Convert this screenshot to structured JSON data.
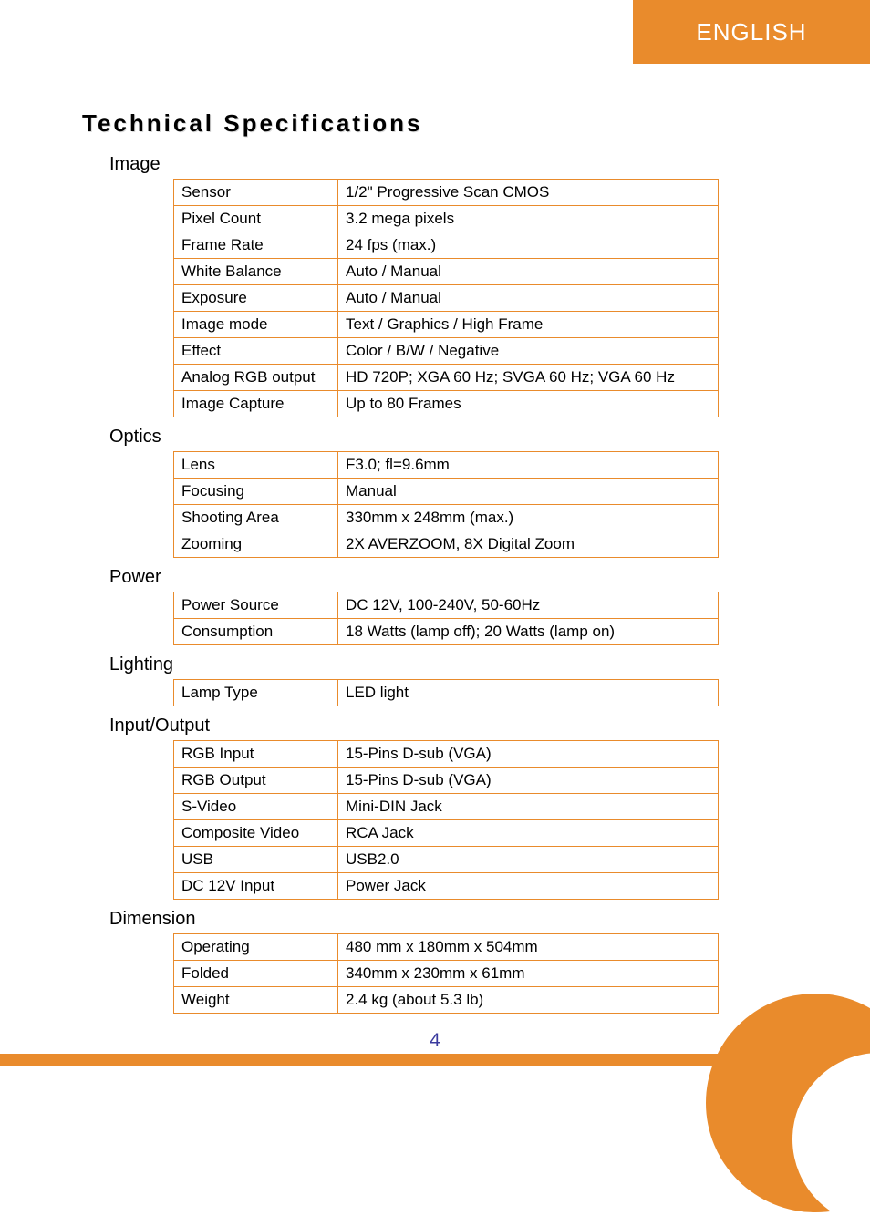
{
  "language_tab": "ENGLISH",
  "main_title": "Technical Specifications",
  "page_number": "4",
  "colors": {
    "accent": "#e98b2c",
    "background": "#ffffff",
    "text": "#000000",
    "page_number": "#3b3b9e"
  },
  "sections": [
    {
      "title": "Image",
      "rows": [
        {
          "label": "Sensor",
          "value": "1/2\" Progressive Scan CMOS"
        },
        {
          "label": "Pixel Count",
          "value": "3.2 mega pixels"
        },
        {
          "label": "Frame Rate",
          "value": "24 fps (max.)"
        },
        {
          "label": "White Balance",
          "value": "Auto / Manual"
        },
        {
          "label": "Exposure",
          "value": "Auto / Manual"
        },
        {
          "label": "Image mode",
          "value": "Text / Graphics / High Frame"
        },
        {
          "label": "Effect",
          "value": "Color / B/W / Negative"
        },
        {
          "label": "Analog RGB output",
          "value": "HD 720P; XGA 60 Hz; SVGA 60 Hz; VGA 60 Hz"
        },
        {
          "label": "Image Capture",
          "value": "Up to 80 Frames"
        }
      ]
    },
    {
      "title": "Optics",
      "rows": [
        {
          "label": "Lens",
          "value": "F3.0; fl=9.6mm"
        },
        {
          "label": "Focusing",
          "value": "Manual"
        },
        {
          "label": "Shooting Area",
          "value": "330mm x 248mm (max.)"
        },
        {
          "label": "Zooming",
          "value": "2X AVERZOOM, 8X Digital Zoom"
        }
      ]
    },
    {
      "title": "Power",
      "rows": [
        {
          "label": "Power Source",
          "value": "DC 12V, 100-240V, 50-60Hz"
        },
        {
          "label": "Consumption",
          "value": "18 Watts (lamp off); 20 Watts (lamp on)"
        }
      ]
    },
    {
      "title": "Lighting",
      "rows": [
        {
          "label": "Lamp Type",
          "value": "LED light"
        }
      ]
    },
    {
      "title": "Input/Output",
      "rows": [
        {
          "label": "RGB Input",
          "value": "15-Pins D-sub (VGA)"
        },
        {
          "label": "RGB Output",
          "value": "15-Pins D-sub (VGA)"
        },
        {
          "label": "S-Video",
          "value": "Mini-DIN Jack"
        },
        {
          "label": "Composite Video",
          "value": "RCA Jack"
        },
        {
          "label": "USB",
          "value": "USB2.0"
        },
        {
          "label": "DC 12V Input",
          "value": "Power Jack"
        }
      ]
    },
    {
      "title": "Dimension",
      "rows": [
        {
          "label": "Operating",
          "value": "480 mm x 180mm x 504mm"
        },
        {
          "label": "Folded",
          "value": "340mm x 230mm x 61mm"
        },
        {
          "label": "Weight",
          "value": "2.4 kg (about 5.3 lb)"
        }
      ]
    }
  ]
}
